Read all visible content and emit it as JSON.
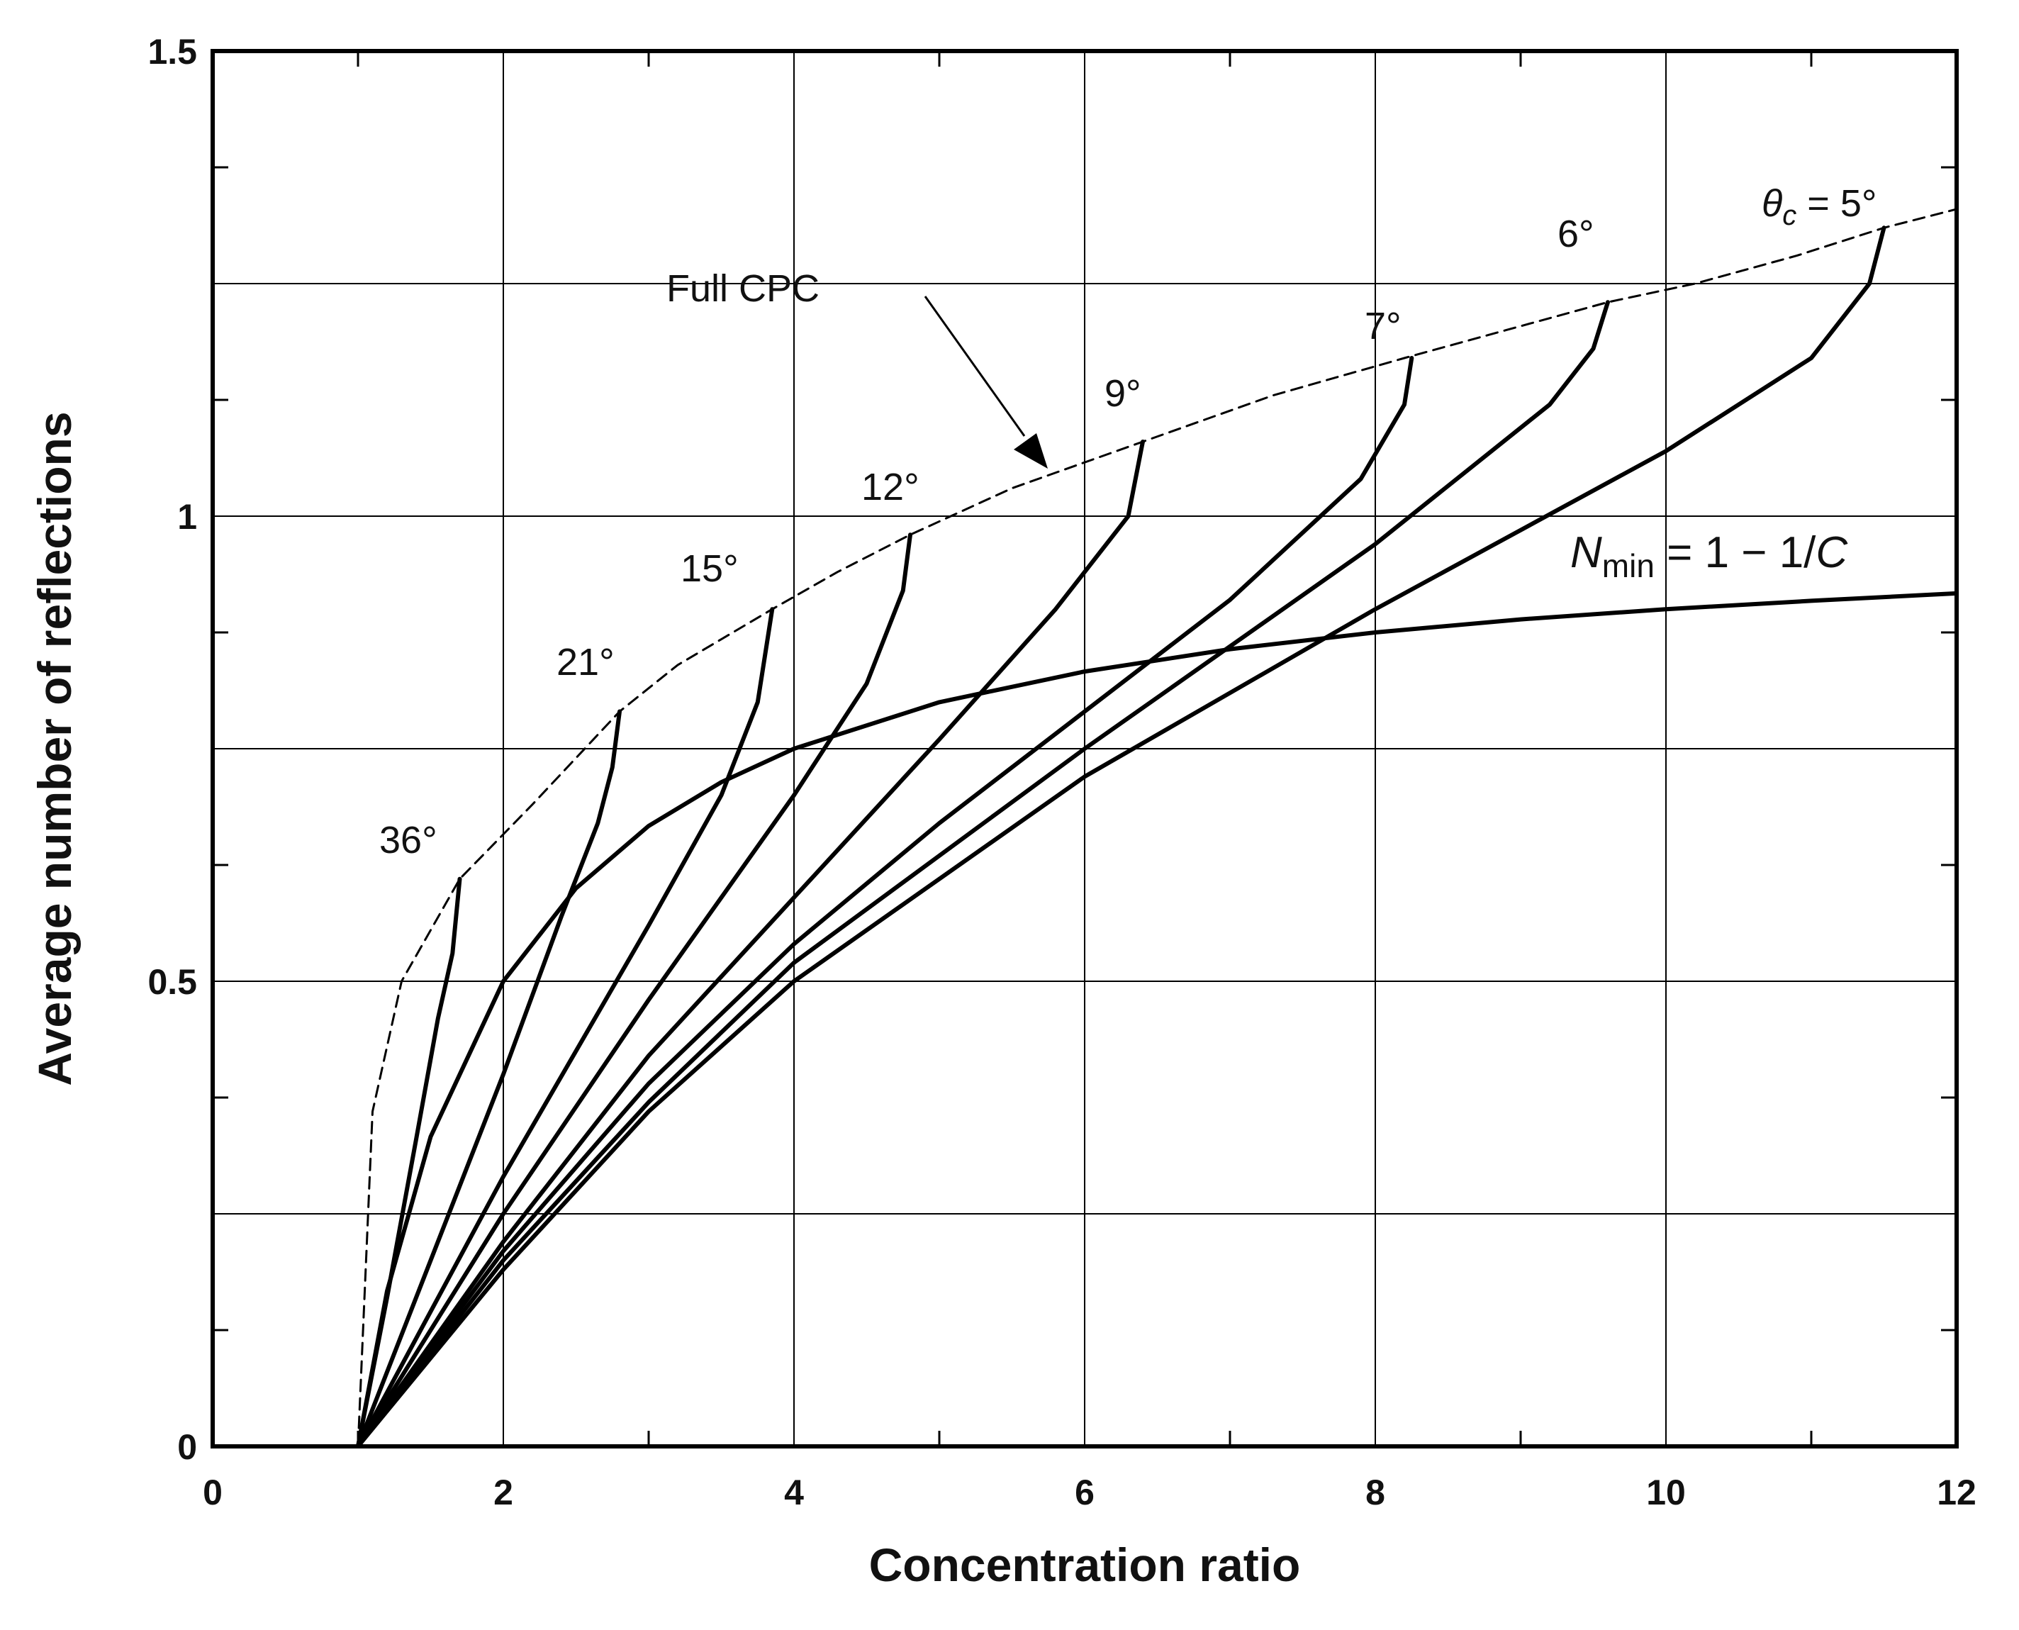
{
  "chart_data": {
    "type": "line",
    "title": "",
    "xlabel": "Concentration ratio",
    "ylabel": "Average number of reflections",
    "xlim": [
      0,
      12
    ],
    "ylim": [
      0,
      1.5
    ],
    "x_ticks": [
      "0",
      "2",
      "4",
      "6",
      "8",
      "10",
      "12"
    ],
    "y_ticks": [
      "0",
      "0.5",
      "1",
      "1.5"
    ],
    "x_tick_values": [
      0,
      2,
      4,
      6,
      8,
      10,
      12
    ],
    "y_tick_values": [
      0,
      0.5,
      1,
      1.5
    ],
    "grid": true,
    "series": [
      {
        "name": "Full CPC",
        "style": "dashed",
        "label": "Full CPC",
        "x": [
          1.0,
          1.1,
          1.3,
          1.7,
          2.2,
          2.8,
          3.2,
          3.85,
          4.3,
          4.8,
          5.5,
          6.4,
          7.3,
          8.2,
          8.9,
          9.6,
          10.2,
          10.9,
          11.5,
          12.0
        ],
        "y": [
          0.0,
          0.36,
          0.5,
          0.61,
          0.69,
          0.79,
          0.84,
          0.9,
          0.94,
          0.98,
          1.03,
          1.08,
          1.13,
          1.17,
          1.2,
          1.23,
          1.25,
          1.28,
          1.31,
          1.33
        ]
      },
      {
        "name": "Nmin = 1 - 1/C",
        "style": "solid",
        "x": [
          1.0,
          1.2,
          1.5,
          2.0,
          2.5,
          3.0,
          3.5,
          4.0,
          5.0,
          6.0,
          7.0,
          8.0,
          9.0,
          10.0,
          11.0,
          12.0
        ],
        "y": [
          0.0,
          0.167,
          0.333,
          0.5,
          0.6,
          0.667,
          0.714,
          0.75,
          0.8,
          0.833,
          0.857,
          0.875,
          0.889,
          0.9,
          0.909,
          0.917
        ]
      },
      {
        "name": "36°",
        "style": "solid",
        "x": [
          1.0,
          1.2,
          1.4,
          1.55,
          1.65,
          1.7
        ],
        "y": [
          0.0,
          0.16,
          0.33,
          0.46,
          0.53,
          0.61
        ]
      },
      {
        "name": "21°",
        "style": "solid",
        "x": [
          1.0,
          1.5,
          2.0,
          2.4,
          2.65,
          2.75,
          2.8
        ],
        "y": [
          0.0,
          0.2,
          0.4,
          0.57,
          0.67,
          0.73,
          0.79
        ]
      },
      {
        "name": "15°",
        "style": "solid",
        "x": [
          1.0,
          2.0,
          3.0,
          3.5,
          3.75,
          3.85
        ],
        "y": [
          0.0,
          0.29,
          0.56,
          0.7,
          0.8,
          0.9
        ]
      },
      {
        "name": "12°",
        "style": "solid",
        "x": [
          1.0,
          2.0,
          3.0,
          4.0,
          4.5,
          4.75,
          4.8
        ],
        "y": [
          0.0,
          0.25,
          0.48,
          0.7,
          0.82,
          0.92,
          0.98
        ]
      },
      {
        "name": "9°",
        "style": "solid",
        "x": [
          1.0,
          2.0,
          3.0,
          4.0,
          5.0,
          5.8,
          6.3,
          6.4
        ],
        "y": [
          0.0,
          0.22,
          0.42,
          0.59,
          0.76,
          0.9,
          1.0,
          1.08
        ]
      },
      {
        "name": "7°",
        "style": "solid",
        "x": [
          1.0,
          2.0,
          3.0,
          4.0,
          5.0,
          6.0,
          7.0,
          7.9,
          8.2,
          8.25
        ],
        "y": [
          0.0,
          0.21,
          0.39,
          0.54,
          0.67,
          0.79,
          0.91,
          1.04,
          1.12,
          1.17
        ]
      },
      {
        "name": "6°",
        "style": "solid",
        "x": [
          1.0,
          2.0,
          3.0,
          4.0,
          6.0,
          8.0,
          9.2,
          9.5,
          9.6
        ],
        "y": [
          0.0,
          0.2,
          0.37,
          0.52,
          0.75,
          0.97,
          1.12,
          1.18,
          1.23
        ]
      },
      {
        "name": "5°",
        "style": "solid",
        "x": [
          1.0,
          2.0,
          3.0,
          4.0,
          6.0,
          8.0,
          10.0,
          11.0,
          11.4,
          11.5
        ],
        "y": [
          0.0,
          0.19,
          0.36,
          0.5,
          0.72,
          0.9,
          1.07,
          1.17,
          1.25,
          1.31
        ]
      }
    ],
    "annotations": [
      {
        "text": "Full CPC",
        "x": 3.85,
        "y": 1.25,
        "arrow_to": [
          5.8,
          1.05
        ]
      },
      {
        "text": "36°",
        "x": 1.6,
        "y": 0.65
      },
      {
        "text": "21°",
        "x": 2.65,
        "y": 0.84
      },
      {
        "text": "15°",
        "x": 3.6,
        "y": 0.95
      },
      {
        "text": "12°",
        "x": 4.6,
        "y": 1.04
      },
      {
        "text": "9°",
        "x": 6.3,
        "y": 1.13
      },
      {
        "text": "7°",
        "x": 8.2,
        "y": 1.2
      },
      {
        "text": "6°",
        "x": 9.5,
        "y": 1.31
      },
      {
        "text": "θ",
        "x": 11.0,
        "y": 1.34
      },
      {
        "text": "c",
        "x": 11.0,
        "y": 1.34
      },
      {
        "text": " = 5°",
        "x": 11.0,
        "y": 1.34
      },
      {
        "text": "N",
        "x": 10.2,
        "y": 0.97
      },
      {
        "text": "min",
        "x": 10.2,
        "y": 0.97
      },
      {
        "text": " = 1 − 1/",
        "x": 10.2,
        "y": 0.97
      },
      {
        "text": "C",
        "x": 10.2,
        "y": 0.97
      }
    ]
  }
}
